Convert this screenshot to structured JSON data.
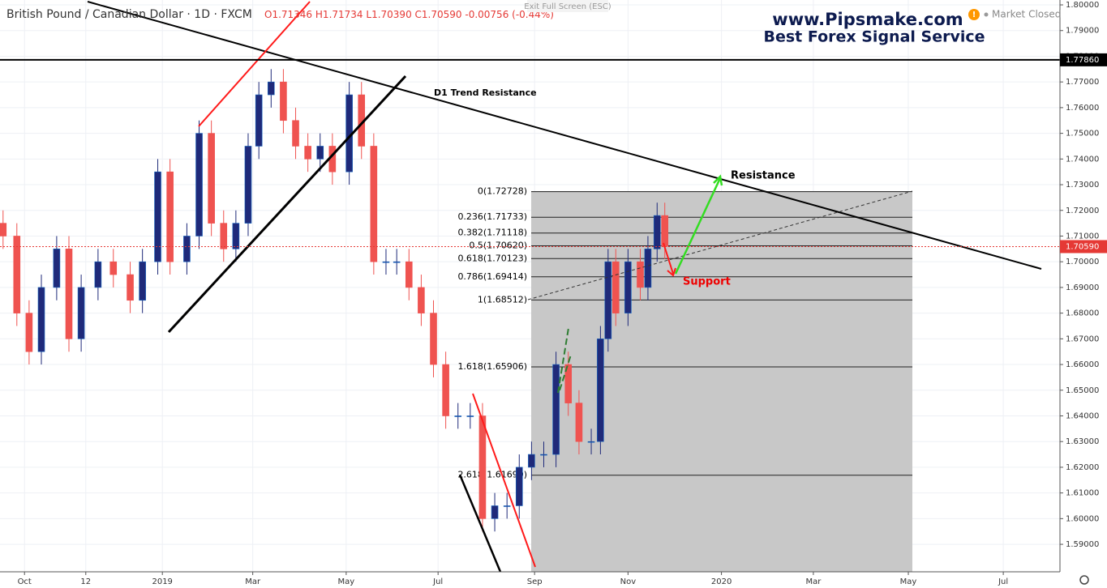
{
  "chart_data": {
    "type": "candlestick",
    "title": "British Pound / Canadian Dollar · 1D · FXCM",
    "ohlc": {
      "open": {
        "value": 1.71346,
        "label": "O1.71346"
      },
      "high": {
        "value": 1.71734,
        "label": "H1.71734"
      },
      "low": {
        "value": 1.7039,
        "label": "L1.70390"
      },
      "close": {
        "value": 1.7059,
        "label": "C1.70590"
      },
      "change": {
        "value": -0.00756,
        "label": "-0.00756"
      },
      "change_pct": {
        "value": -0.44,
        "label": "(-0.44%)"
      }
    },
    "fullscreen_hint": "Exit Full Screen (ESC)",
    "watermark": {
      "site": "www.Pipsmake.com",
      "tagline": "Best Forex Signal Service"
    },
    "market_status": "Market Closed",
    "annotations": {
      "trend": "D1 Trend Resistance",
      "resistance": "Resistance",
      "support": "Support"
    },
    "x": [
      -104,
      -95,
      -87,
      -79,
      -69,
      -61,
      -53,
      -42,
      -32,
      -21,
      -13,
      -3,
      5,
      16,
      24,
      32,
      40,
      48,
      56,
      63,
      71,
      79,
      87,
      95,
      103,
      111,
      122,
      130,
      138,
      146,
      153,
      161,
      169,
      177,
      185,
      193,
      201,
      209,
      217,
      225,
      233,
      241,
      249,
      257,
      265,
      272,
      280,
      286,
      291,
      296,
      304,
      312,
      317,
      323,
      328
    ],
    "open": [
      1.715,
      1.71,
      1.68,
      1.665,
      1.69,
      1.705,
      1.67,
      1.69,
      1.7,
      1.695,
      1.685,
      1.7,
      1.735,
      1.7,
      1.71,
      1.75,
      1.715,
      1.705,
      1.715,
      1.745,
      1.765,
      1.77,
      1.755,
      1.745,
      1.74,
      1.745,
      1.735,
      1.765,
      1.745,
      1.7,
      1.7,
      1.7,
      1.69,
      1.68,
      1.66,
      1.64,
      1.64,
      1.64,
      1.6,
      1.605,
      1.605,
      1.62,
      1.625,
      1.625,
      1.66,
      1.645,
      1.63,
      1.63,
      1.67,
      1.7,
      1.68,
      1.7,
      1.69,
      1.705,
      1.718
    ],
    "high": [
      1.72,
      1.715,
      1.685,
      1.695,
      1.71,
      1.71,
      1.695,
      1.705,
      1.705,
      1.7,
      1.705,
      1.74,
      1.74,
      1.715,
      1.755,
      1.755,
      1.72,
      1.72,
      1.75,
      1.77,
      1.775,
      1.775,
      1.76,
      1.75,
      1.75,
      1.75,
      1.77,
      1.77,
      1.75,
      1.705,
      1.705,
      1.705,
      1.695,
      1.685,
      1.665,
      1.645,
      1.645,
      1.645,
      1.61,
      1.61,
      1.625,
      1.63,
      1.63,
      1.665,
      1.665,
      1.65,
      1.635,
      1.675,
      1.705,
      1.705,
      1.705,
      1.705,
      1.71,
      1.723,
      1.723
    ],
    "low": [
      1.705,
      1.675,
      1.66,
      1.66,
      1.685,
      1.665,
      1.665,
      1.685,
      1.69,
      1.68,
      1.68,
      1.695,
      1.695,
      1.695,
      1.705,
      1.71,
      1.7,
      1.7,
      1.71,
      1.74,
      1.76,
      1.75,
      1.74,
      1.735,
      1.735,
      1.73,
      1.73,
      1.74,
      1.695,
      1.695,
      1.695,
      1.685,
      1.675,
      1.655,
      1.635,
      1.635,
      1.635,
      1.595,
      1.595,
      1.6,
      1.6,
      1.615,
      1.62,
      1.62,
      1.64,
      1.625,
      1.625,
      1.625,
      1.665,
      1.675,
      1.675,
      1.685,
      1.685,
      1.7,
      1.701
    ],
    "close": [
      1.71,
      1.68,
      1.665,
      1.69,
      1.705,
      1.67,
      1.69,
      1.7,
      1.695,
      1.685,
      1.7,
      1.735,
      1.7,
      1.71,
      1.75,
      1.715,
      1.705,
      1.715,
      1.745,
      1.765,
      1.77,
      1.755,
      1.745,
      1.74,
      1.745,
      1.735,
      1.765,
      1.745,
      1.7,
      1.7,
      1.7,
      1.69,
      1.68,
      1.66,
      1.64,
      1.64,
      1.64,
      1.6,
      1.605,
      1.605,
      1.62,
      1.625,
      1.625,
      1.66,
      1.645,
      1.63,
      1.63,
      1.67,
      1.7,
      1.68,
      1.7,
      1.69,
      1.705,
      1.718,
      1.706
    ],
    "up_color": "#1f2a7a",
    "down_color": "#ef5350",
    "xlim": [
      -106,
      586
    ],
    "xticks": [
      {
        "value": -90,
        "label": "Oct"
      },
      {
        "value": -50,
        "label": "12"
      },
      {
        "value": 0,
        "label": "2019"
      },
      {
        "value": 59,
        "label": "Mar"
      },
      {
        "value": 120,
        "label": "May"
      },
      {
        "value": 180,
        "label": "Jul"
      },
      {
        "value": 243,
        "label": "Sep"
      },
      {
        "value": 304,
        "label": "Nov"
      },
      {
        "value": 365,
        "label": "2020"
      },
      {
        "value": 425,
        "label": "Mar"
      },
      {
        "value": 487,
        "label": "May"
      },
      {
        "value": 549,
        "label": "Jul"
      }
    ],
    "ylim": [
      1.5793,
      1.8019
    ],
    "yticks": [
      {
        "value": 1.8,
        "label": "1.80000"
      },
      {
        "value": 1.79,
        "label": "1.79000"
      },
      {
        "value": 1.78,
        "label": "1.78000"
      },
      {
        "value": 1.77,
        "label": "1.77000"
      },
      {
        "value": 1.76,
        "label": "1.76000"
      },
      {
        "value": 1.75,
        "label": "1.75000"
      },
      {
        "value": 1.74,
        "label": "1.74000"
      },
      {
        "value": 1.73,
        "label": "1.73000"
      },
      {
        "value": 1.72,
        "label": "1.72000"
      },
      {
        "value": 1.71,
        "label": "1.71000"
      },
      {
        "value": 1.7,
        "label": "1.70000"
      },
      {
        "value": 1.69,
        "label": "1.69000"
      },
      {
        "value": 1.68,
        "label": "1.68000"
      },
      {
        "value": 1.67,
        "label": "1.67000"
      },
      {
        "value": 1.66,
        "label": "1.66000"
      },
      {
        "value": 1.65,
        "label": "1.65000"
      },
      {
        "value": 1.64,
        "label": "1.64000"
      },
      {
        "value": 1.63,
        "label": "1.63000"
      },
      {
        "value": 1.62,
        "label": "1.62000"
      },
      {
        "value": 1.61,
        "label": "1.61000"
      },
      {
        "value": 1.6,
        "label": "1.60000"
      },
      {
        "value": 1.59,
        "label": "1.59000"
      }
    ],
    "grid": true,
    "horizontal_level": {
      "value": 1.7786,
      "label": "1.77860"
    },
    "price_line": {
      "value": 1.7059,
      "label": "1.70590",
      "color": "#e53935"
    },
    "fib_levels": [
      {
        "value": 1.72728,
        "label": "0(1.72728)"
      },
      {
        "value": 1.71733,
        "label": "0.236(1.71733)"
      },
      {
        "value": 1.71118,
        "label": "0.382(1.71118)"
      },
      {
        "value": 1.7062,
        "label": "0.5(1.70620)"
      },
      {
        "value": 1.70123,
        "label": "0.618(1.70123)"
      },
      {
        "value": 1.69414,
        "label": "0.786(1.69414)"
      },
      {
        "value": 1.68512,
        "label": "1(1.68512)"
      },
      {
        "value": 1.65906,
        "label": "1.618(1.65906)"
      },
      {
        "value": 1.6169,
        "label": "2.618(1.61690)"
      }
    ]
  }
}
